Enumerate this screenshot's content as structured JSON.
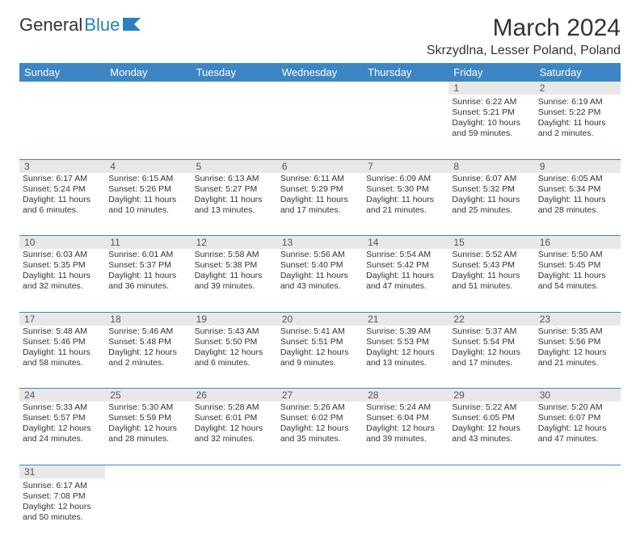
{
  "logo": {
    "text1": "General",
    "text2": "Blue"
  },
  "title": "March 2024",
  "location": "Skrzydlna, Lesser Poland, Poland",
  "colors": {
    "header_bg": "#3d86c6",
    "header_text": "#ffffff",
    "daynum_bg": "#e8e8e8",
    "daynum_text": "#555555",
    "cell_border": "#3d86c6",
    "body_text": "#333333",
    "logo_accent": "#2a7fbf"
  },
  "weekdays": [
    "Sunday",
    "Monday",
    "Tuesday",
    "Wednesday",
    "Thursday",
    "Friday",
    "Saturday"
  ],
  "weeks": [
    [
      null,
      null,
      null,
      null,
      null,
      {
        "n": "1",
        "sr": "Sunrise: 6:22 AM",
        "ss": "Sunset: 5:21 PM",
        "dl": "Daylight: 10 hours and 59 minutes."
      },
      {
        "n": "2",
        "sr": "Sunrise: 6:19 AM",
        "ss": "Sunset: 5:22 PM",
        "dl": "Daylight: 11 hours and 2 minutes."
      }
    ],
    [
      {
        "n": "3",
        "sr": "Sunrise: 6:17 AM",
        "ss": "Sunset: 5:24 PM",
        "dl": "Daylight: 11 hours and 6 minutes."
      },
      {
        "n": "4",
        "sr": "Sunrise: 6:15 AM",
        "ss": "Sunset: 5:26 PM",
        "dl": "Daylight: 11 hours and 10 minutes."
      },
      {
        "n": "5",
        "sr": "Sunrise: 6:13 AM",
        "ss": "Sunset: 5:27 PM",
        "dl": "Daylight: 11 hours and 13 minutes."
      },
      {
        "n": "6",
        "sr": "Sunrise: 6:11 AM",
        "ss": "Sunset: 5:29 PM",
        "dl": "Daylight: 11 hours and 17 minutes."
      },
      {
        "n": "7",
        "sr": "Sunrise: 6:09 AM",
        "ss": "Sunset: 5:30 PM",
        "dl": "Daylight: 11 hours and 21 minutes."
      },
      {
        "n": "8",
        "sr": "Sunrise: 6:07 AM",
        "ss": "Sunset: 5:32 PM",
        "dl": "Daylight: 11 hours and 25 minutes."
      },
      {
        "n": "9",
        "sr": "Sunrise: 6:05 AM",
        "ss": "Sunset: 5:34 PM",
        "dl": "Daylight: 11 hours and 28 minutes."
      }
    ],
    [
      {
        "n": "10",
        "sr": "Sunrise: 6:03 AM",
        "ss": "Sunset: 5:35 PM",
        "dl": "Daylight: 11 hours and 32 minutes."
      },
      {
        "n": "11",
        "sr": "Sunrise: 6:01 AM",
        "ss": "Sunset: 5:37 PM",
        "dl": "Daylight: 11 hours and 36 minutes."
      },
      {
        "n": "12",
        "sr": "Sunrise: 5:58 AM",
        "ss": "Sunset: 5:38 PM",
        "dl": "Daylight: 11 hours and 39 minutes."
      },
      {
        "n": "13",
        "sr": "Sunrise: 5:56 AM",
        "ss": "Sunset: 5:40 PM",
        "dl": "Daylight: 11 hours and 43 minutes."
      },
      {
        "n": "14",
        "sr": "Sunrise: 5:54 AM",
        "ss": "Sunset: 5:42 PM",
        "dl": "Daylight: 11 hours and 47 minutes."
      },
      {
        "n": "15",
        "sr": "Sunrise: 5:52 AM",
        "ss": "Sunset: 5:43 PM",
        "dl": "Daylight: 11 hours and 51 minutes."
      },
      {
        "n": "16",
        "sr": "Sunrise: 5:50 AM",
        "ss": "Sunset: 5:45 PM",
        "dl": "Daylight: 11 hours and 54 minutes."
      }
    ],
    [
      {
        "n": "17",
        "sr": "Sunrise: 5:48 AM",
        "ss": "Sunset: 5:46 PM",
        "dl": "Daylight: 11 hours and 58 minutes."
      },
      {
        "n": "18",
        "sr": "Sunrise: 5:46 AM",
        "ss": "Sunset: 5:48 PM",
        "dl": "Daylight: 12 hours and 2 minutes."
      },
      {
        "n": "19",
        "sr": "Sunrise: 5:43 AM",
        "ss": "Sunset: 5:50 PM",
        "dl": "Daylight: 12 hours and 6 minutes."
      },
      {
        "n": "20",
        "sr": "Sunrise: 5:41 AM",
        "ss": "Sunset: 5:51 PM",
        "dl": "Daylight: 12 hours and 9 minutes."
      },
      {
        "n": "21",
        "sr": "Sunrise: 5:39 AM",
        "ss": "Sunset: 5:53 PM",
        "dl": "Daylight: 12 hours and 13 minutes."
      },
      {
        "n": "22",
        "sr": "Sunrise: 5:37 AM",
        "ss": "Sunset: 5:54 PM",
        "dl": "Daylight: 12 hours and 17 minutes."
      },
      {
        "n": "23",
        "sr": "Sunrise: 5:35 AM",
        "ss": "Sunset: 5:56 PM",
        "dl": "Daylight: 12 hours and 21 minutes."
      }
    ],
    [
      {
        "n": "24",
        "sr": "Sunrise: 5:33 AM",
        "ss": "Sunset: 5:57 PM",
        "dl": "Daylight: 12 hours and 24 minutes."
      },
      {
        "n": "25",
        "sr": "Sunrise: 5:30 AM",
        "ss": "Sunset: 5:59 PM",
        "dl": "Daylight: 12 hours and 28 minutes."
      },
      {
        "n": "26",
        "sr": "Sunrise: 5:28 AM",
        "ss": "Sunset: 6:01 PM",
        "dl": "Daylight: 12 hours and 32 minutes."
      },
      {
        "n": "27",
        "sr": "Sunrise: 5:26 AM",
        "ss": "Sunset: 6:02 PM",
        "dl": "Daylight: 12 hours and 35 minutes."
      },
      {
        "n": "28",
        "sr": "Sunrise: 5:24 AM",
        "ss": "Sunset: 6:04 PM",
        "dl": "Daylight: 12 hours and 39 minutes."
      },
      {
        "n": "29",
        "sr": "Sunrise: 5:22 AM",
        "ss": "Sunset: 6:05 PM",
        "dl": "Daylight: 12 hours and 43 minutes."
      },
      {
        "n": "30",
        "sr": "Sunrise: 5:20 AM",
        "ss": "Sunset: 6:07 PM",
        "dl": "Daylight: 12 hours and 47 minutes."
      }
    ],
    [
      {
        "n": "31",
        "sr": "Sunrise: 6:17 AM",
        "ss": "Sunset: 7:08 PM",
        "dl": "Daylight: 12 hours and 50 minutes."
      },
      null,
      null,
      null,
      null,
      null,
      null
    ]
  ]
}
